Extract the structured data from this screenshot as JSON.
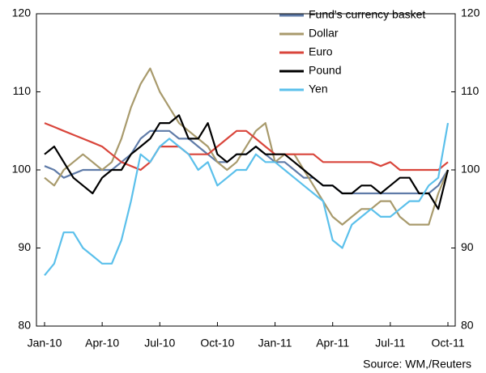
{
  "chart_data": {
    "type": "line",
    "source": "Source: WM,/Reuters",
    "categories": [
      "Jan-10",
      null,
      null,
      null,
      null,
      null,
      "Apr-10",
      null,
      null,
      null,
      null,
      null,
      "Jul-10",
      null,
      null,
      null,
      null,
      null,
      "Oct-10",
      null,
      null,
      null,
      null,
      null,
      "Jan-11",
      null,
      null,
      null,
      null,
      null,
      "Apr-11",
      null,
      null,
      null,
      null,
      null,
      "Jul-11",
      null,
      null,
      null,
      null,
      null,
      "Oct-11"
    ],
    "series": [
      {
        "name": "Fund's currency basket",
        "color": "#5f7ba8",
        "values": [
          100.5,
          100,
          99,
          99.5,
          100,
          100,
          100,
          100,
          101,
          102,
          104,
          105,
          105,
          105,
          104,
          104,
          103,
          102,
          101,
          101,
          102,
          102,
          103,
          102,
          101,
          101,
          100,
          99,
          99,
          98,
          98,
          97,
          97,
          97,
          97,
          97,
          97,
          97,
          97,
          97,
          97,
          98,
          100
        ]
      },
      {
        "name": "Dollar",
        "color": "#a89a6c",
        "values": [
          99,
          98,
          100,
          101,
          102,
          101,
          100,
          101,
          104,
          108,
          111,
          113,
          110,
          108,
          106,
          105,
          104,
          103,
          101,
          100,
          101,
          103,
          105,
          106,
          101,
          102,
          102,
          100,
          98,
          96,
          94,
          93,
          94,
          95,
          95,
          96,
          96,
          94,
          93,
          93,
          93,
          97,
          100
        ]
      },
      {
        "name": "Euro",
        "color": "#d9453b",
        "values": [
          106,
          105.5,
          105,
          104.5,
          104,
          103.5,
          103,
          102,
          101,
          100.5,
          100,
          101,
          103,
          103,
          103,
          102,
          102,
          102,
          103,
          104,
          105,
          105,
          104,
          103,
          102,
          102,
          102,
          102,
          102,
          101,
          101,
          101,
          101,
          101,
          101,
          100.5,
          101,
          100,
          100,
          100,
          100,
          100,
          101
        ]
      },
      {
        "name": "Pound",
        "color": "#000000",
        "values": [
          102,
          103,
          101,
          99,
          98,
          97,
          99,
          100,
          100,
          102,
          103,
          104,
          106,
          106,
          107,
          104,
          104,
          106,
          102,
          101,
          102,
          102,
          103,
          102,
          102,
          102,
          101,
          100,
          99,
          98,
          98,
          97,
          97,
          98,
          98,
          97,
          98,
          99,
          99,
          97,
          97,
          95,
          100
        ]
      },
      {
        "name": "Yen",
        "color": "#5bc0eb",
        "values": [
          86.5,
          88,
          92,
          92,
          90,
          89,
          88,
          88,
          91,
          96,
          102,
          101,
          103,
          104,
          103,
          102,
          100,
          101,
          98,
          99,
          100,
          100,
          102,
          101,
          101,
          100,
          99,
          98,
          97,
          96,
          91,
          90,
          93,
          94,
          95,
          94,
          94,
          95,
          96,
          96,
          98,
          99,
          106
        ]
      }
    ],
    "ylim": [
      80,
      120
    ],
    "yticks": [
      80,
      90,
      100,
      110,
      120
    ],
    "grid": false,
    "legend": "upper right"
  }
}
